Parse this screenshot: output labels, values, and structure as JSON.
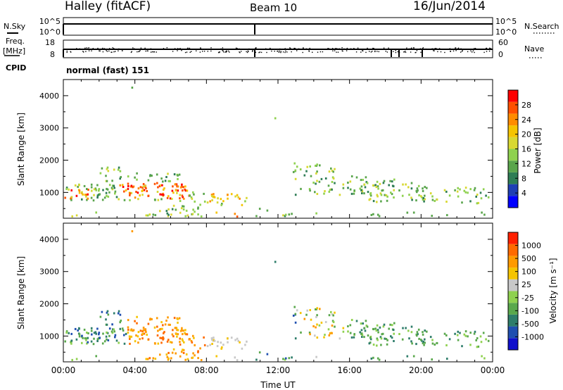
{
  "header": {
    "station": "Halley (fitACF)",
    "beam": "Beam 10",
    "date": "16/Jun/2014"
  },
  "top_panels": {
    "nsky_label": "N.Sky",
    "nsky_ticks": [
      "10^5",
      "10^0"
    ],
    "nsearch_label": "N.Search",
    "nsearch_ticks": [
      "10^5",
      "10^0"
    ],
    "freq_label": "Freq.",
    "freq_unit": "[MHz]",
    "freq_ticks": [
      "18",
      "8"
    ],
    "nave_label": "Nave",
    "nave_ticks": [
      "60",
      "0"
    ],
    "cpid_label": "CPID",
    "cpid_value": "normal (fast) 151"
  },
  "colorbars": {
    "power": {
      "label": "Power [dB]",
      "ticks": [
        "28",
        "24",
        "20",
        "16",
        "12",
        "8",
        "4"
      ],
      "colors": [
        "#0000ff",
        "#1f3fb4",
        "#2e7d55",
        "#5aa54c",
        "#8fd14f",
        "#d8d832",
        "#f5c400",
        "#ff8c00",
        "#ff5000",
        "#ff0000"
      ]
    },
    "velocity": {
      "label": "Velocity [m s⁻¹]",
      "ticks": [
        "1000",
        "500",
        "100",
        "25",
        "-25",
        "-100",
        "-500",
        "-1000"
      ],
      "colors": [
        "#1010cc",
        "#1f4fb0",
        "#2e7d6a",
        "#5aa84c",
        "#8fd14f",
        "#c8c8c8",
        "#f5c400",
        "#ff9a00",
        "#ff6a00",
        "#ff2000"
      ]
    }
  },
  "chart_data": [
    {
      "type": "heatmap",
      "name": "power",
      "ylabel": "Slant Range [km]",
      "yticks": [
        "4000",
        "3000",
        "2000",
        "1000"
      ],
      "ylim": [
        200,
        4500
      ],
      "xlim": [
        0,
        24
      ],
      "grid": false
    },
    {
      "type": "heatmap",
      "name": "velocity",
      "ylabel": "Slant Range [km]",
      "yticks": [
        "4000",
        "3000",
        "2000",
        "1000"
      ],
      "ylim": [
        200,
        4500
      ],
      "xlim": [
        0,
        24
      ],
      "xlabel": "Time UT",
      "xticks": [
        "00:00",
        "04:00",
        "08:00",
        "12:00",
        "16:00",
        "20:00",
        "00:00"
      ],
      "grid": false
    }
  ]
}
